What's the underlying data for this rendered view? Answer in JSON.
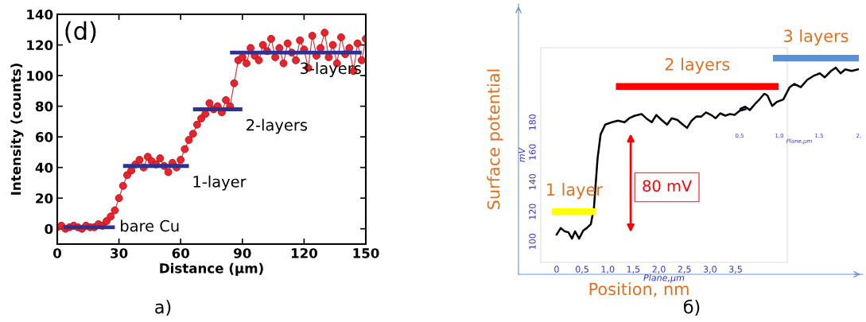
{
  "chart_data": [
    {
      "type": "line",
      "title": "(d)",
      "xlabel": "Distance (μm)",
      "ylabel": "Intensity (counts)",
      "xlim": [
        0,
        150
      ],
      "ylim": [
        -10,
        140
      ],
      "xticks": [
        0,
        30,
        60,
        90,
        120,
        150
      ],
      "yticks": [
        0,
        20,
        40,
        60,
        80,
        100,
        120,
        140
      ],
      "grid": false,
      "legend": false,
      "series": [
        {
          "color": "#e8232b",
          "marker": "circle",
          "x": [
            0,
            2,
            4,
            6,
            8,
            10,
            12,
            14,
            16,
            18,
            20,
            22,
            24,
            26,
            28,
            30,
            32,
            34,
            36,
            38,
            40,
            42,
            44,
            46,
            48,
            50,
            52,
            54,
            56,
            58,
            60,
            62,
            64,
            66,
            68,
            70,
            72,
            74,
            76,
            78,
            80,
            82,
            84,
            86,
            88,
            90,
            92,
            94,
            96,
            98,
            100,
            102,
            104,
            106,
            108,
            110,
            112,
            114,
            116,
            118,
            120,
            122,
            124,
            126,
            128,
            130,
            132,
            134,
            136,
            138,
            140,
            142,
            144,
            146,
            148,
            150
          ],
          "values": [
            1,
            2,
            0,
            1,
            2,
            1,
            0,
            2,
            1,
            1,
            3,
            2,
            5,
            8,
            12,
            20,
            28,
            35,
            38,
            42,
            45,
            40,
            47,
            44,
            42,
            46,
            41,
            37,
            43,
            40,
            45,
            52,
            58,
            62,
            68,
            72,
            75,
            82,
            78,
            80,
            76,
            84,
            80,
            95,
            110,
            112,
            108,
            118,
            113,
            110,
            120,
            116,
            124,
            112,
            118,
            108,
            121,
            115,
            110,
            123,
            117,
            105,
            126,
            113,
            118,
            128,
            112,
            120,
            108,
            125,
            114,
            118,
            103,
            121,
            110,
            124
          ]
        },
        {
          "name": "bare Cu",
          "color": "#2e3192",
          "x": [
            3,
            28
          ],
          "values": [
            1,
            1
          ]
        },
        {
          "name": "1-layer",
          "color": "#2e3192",
          "x": [
            32,
            64
          ],
          "values": [
            41,
            41
          ]
        },
        {
          "name": "2-layers",
          "color": "#2e3192",
          "x": [
            66,
            90
          ],
          "values": [
            78,
            78
          ]
        },
        {
          "name": "3-layers",
          "color": "#2e3192",
          "x": [
            84,
            148
          ],
          "values": [
            115,
            115
          ]
        }
      ],
      "annotations": [
        "a)"
      ]
    },
    {
      "type": "other",
      "xlabel": "Position, nm",
      "ylabel": "Surface potential",
      "annotations": [
        "б)"
      ]
    },
    {
      "type": "line",
      "xlabel": "Plane,μm",
      "ylabel": "mV",
      "xlim": [
        -0.31,
        4.51
      ],
      "ylim": [
        86,
        230
      ],
      "xticks": [
        {
          "value": 0,
          "label": "0"
        },
        {
          "value": 0.5,
          "label": "0,5"
        },
        {
          "value": 1,
          "label": "1,0"
        },
        {
          "value": 1.5,
          "label": "1,5"
        },
        {
          "value": 2,
          "label": "2,0"
        },
        {
          "value": 2.5,
          "label": "2,5"
        },
        {
          "value": 3,
          "label": "3,0"
        },
        {
          "value": 3.5,
          "label": "3,5"
        }
      ],
      "yticks": [
        100,
        120,
        140,
        160,
        180
      ],
      "x2label": "Plane,μm",
      "x2lim": [
        0.5,
        2.0
      ],
      "x2ticks": [
        {
          "value": 0.5,
          "label": "0,5"
        },
        {
          "value": 1,
          "label": "1,0"
        },
        {
          "value": 1.5,
          "label": "1,5"
        },
        {
          "value": 2,
          "label": "2,"
        }
      ],
      "grid": false,
      "legend": false,
      "series": [
        {
          "color": "#000000",
          "x": [
            0.0,
            0.08,
            0.16,
            0.23,
            0.3,
            0.36,
            0.44,
            0.52,
            0.59,
            0.67,
            0.73,
            0.8,
            0.86,
            0.95,
            1.08,
            1.2,
            1.33,
            1.42,
            1.53,
            1.66,
            1.75,
            1.86,
            1.95,
            2.05,
            2.16,
            2.25,
            2.36,
            2.45,
            2.55,
            2.64,
            2.73,
            2.83,
            2.92,
            3.02,
            3.11,
            3.2,
            3.3,
            3.39,
            3.48,
            3.58,
            3.69
          ],
          "values": [
            104.6,
            109.0,
            106.8,
            106.2,
            101.9,
            106.8,
            101.9,
            107.3,
            109.0,
            111.7,
            122.6,
            155.4,
            171.8,
            178.4,
            180.0,
            181.1,
            180.0,
            182.7,
            184.4,
            185.5,
            182.7,
            180.0,
            184.9,
            181.6,
            178.4,
            182.7,
            181.6,
            178.9,
            176.2,
            181.1,
            183.8,
            183.8,
            186.6,
            184.9,
            182.7,
            186.0,
            184.4,
            185.5,
            184.9,
            187.7,
            188.7
          ]
        },
        {
          "name": "1 layer",
          "color": "#ffff00",
          "x": [
            -0.09,
            0.77
          ],
          "values": [
            120,
            120
          ]
        },
        {
          "name": "2 layers",
          "color": "#ff0000",
          "x": [
            1.16,
            4.34
          ],
          "values": [
            204,
            204
          ]
        },
        {
          "color": "#000000",
          "axis": "x2",
          "x": [
            0.5,
            0.57,
            0.63,
            0.69,
            0.75,
            0.81,
            0.85,
            0.91,
            0.97,
            1.05,
            1.13,
            1.19,
            1.27,
            1.35,
            1.43,
            1.51,
            1.57,
            1.65,
            1.71,
            1.77,
            1.83,
            1.91,
            1.99
          ],
          "values": [
            188.7,
            190.4,
            188.2,
            192.0,
            195.3,
            199.1,
            198.0,
            190.9,
            193.7,
            195.3,
            203.5,
            205.7,
            203.5,
            208.4,
            211.1,
            212.8,
            210.1,
            214.4,
            216.6,
            212.8,
            215.5,
            214.4,
            215.5
          ]
        },
        {
          "name": "3 layers",
          "color": "#5b8fd6",
          "axis": "x2",
          "x": [
            0.92,
            2.0
          ],
          "values": [
            223,
            223
          ]
        }
      ],
      "annotations": [
        "80 mV"
      ]
    }
  ]
}
